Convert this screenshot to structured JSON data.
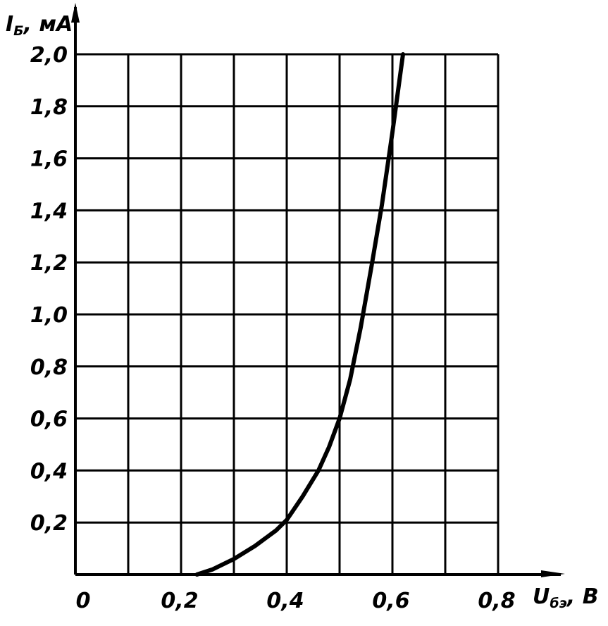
{
  "chart_data": {
    "type": "line",
    "title": "",
    "xlabel_main": "U",
    "xlabel_sub": "бэ",
    "xlabel_unit": ", B",
    "ylabel_main": "I",
    "ylabel_sub": "Б",
    "ylabel_unit": ", мА",
    "xlim": [
      0,
      0.8
    ],
    "ylim": [
      0,
      2.0
    ],
    "x_grid_step": 0.1,
    "y_grid_step": 0.2,
    "grid": true,
    "x_tick_values": [
      0,
      0.2,
      0.4,
      0.6,
      0.8
    ],
    "x_tick_labels": [
      "0",
      "0,2",
      "0,4",
      "0,6",
      "0,8"
    ],
    "y_tick_values": [
      0.2,
      0.4,
      0.6,
      0.8,
      1.0,
      1.2,
      1.4,
      1.6,
      1.8,
      2.0
    ],
    "y_tick_labels": [
      "0,2",
      "0,4",
      "0,6",
      "0,8",
      "1,0",
      "1,2",
      "1,4",
      "1,6",
      "1,8",
      "2,0"
    ],
    "series": [
      {
        "x": [
          0.23,
          0.26,
          0.3,
          0.34,
          0.38,
          0.4,
          0.43,
          0.46,
          0.48,
          0.5,
          0.52,
          0.54,
          0.56,
          0.58,
          0.6,
          0.62
        ],
        "y": [
          0.0,
          0.02,
          0.06,
          0.11,
          0.17,
          0.21,
          0.3,
          0.4,
          0.49,
          0.6,
          0.75,
          0.95,
          1.18,
          1.42,
          1.7,
          2.0
        ]
      }
    ],
    "colors": {
      "line": "#000000",
      "grid": "#000000"
    }
  }
}
